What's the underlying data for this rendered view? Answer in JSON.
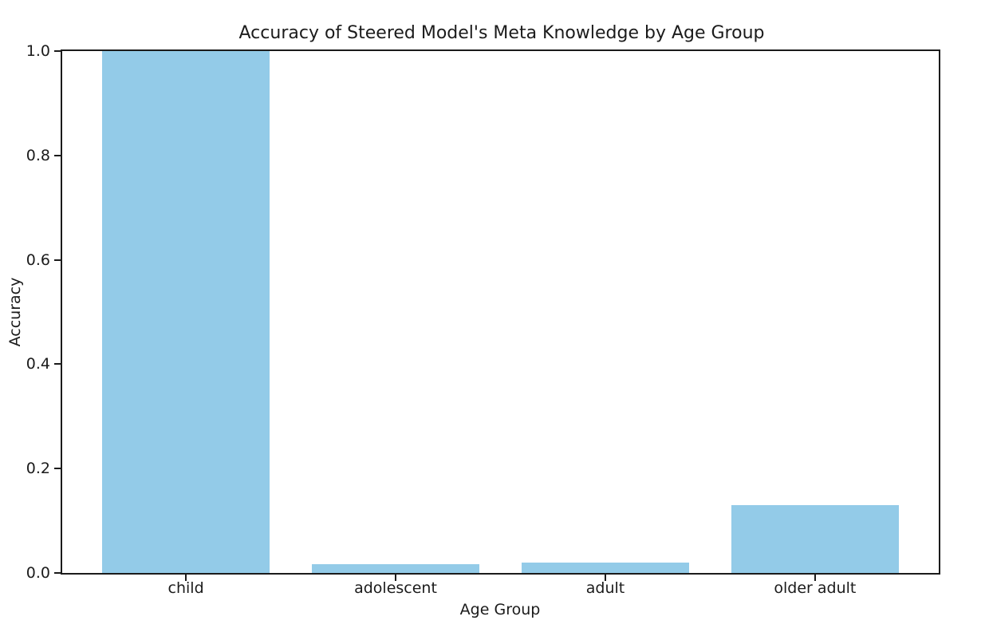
{
  "chart_data": {
    "type": "bar",
    "title": "Accuracy of Steered Model's Meta Knowledge by Age Group",
    "xlabel": "Age Group",
    "ylabel": "Accuracy",
    "categories": [
      "child",
      "adolescent",
      "adult",
      "older adult"
    ],
    "values": [
      1.0,
      0.017,
      0.02,
      0.13
    ],
    "bar_color": "#93cbe8",
    "ylim": [
      0.0,
      1.0
    ],
    "yticks": [
      0.0,
      0.2,
      0.4,
      0.6,
      0.8,
      1.0
    ],
    "bar_width_fraction": 0.8,
    "x_margin_fraction": 0.05,
    "grid": false,
    "legend": null,
    "background_color": "#ffffff",
    "spine_color": "#1b1b1b",
    "text_color": "#1b1b1b"
  }
}
